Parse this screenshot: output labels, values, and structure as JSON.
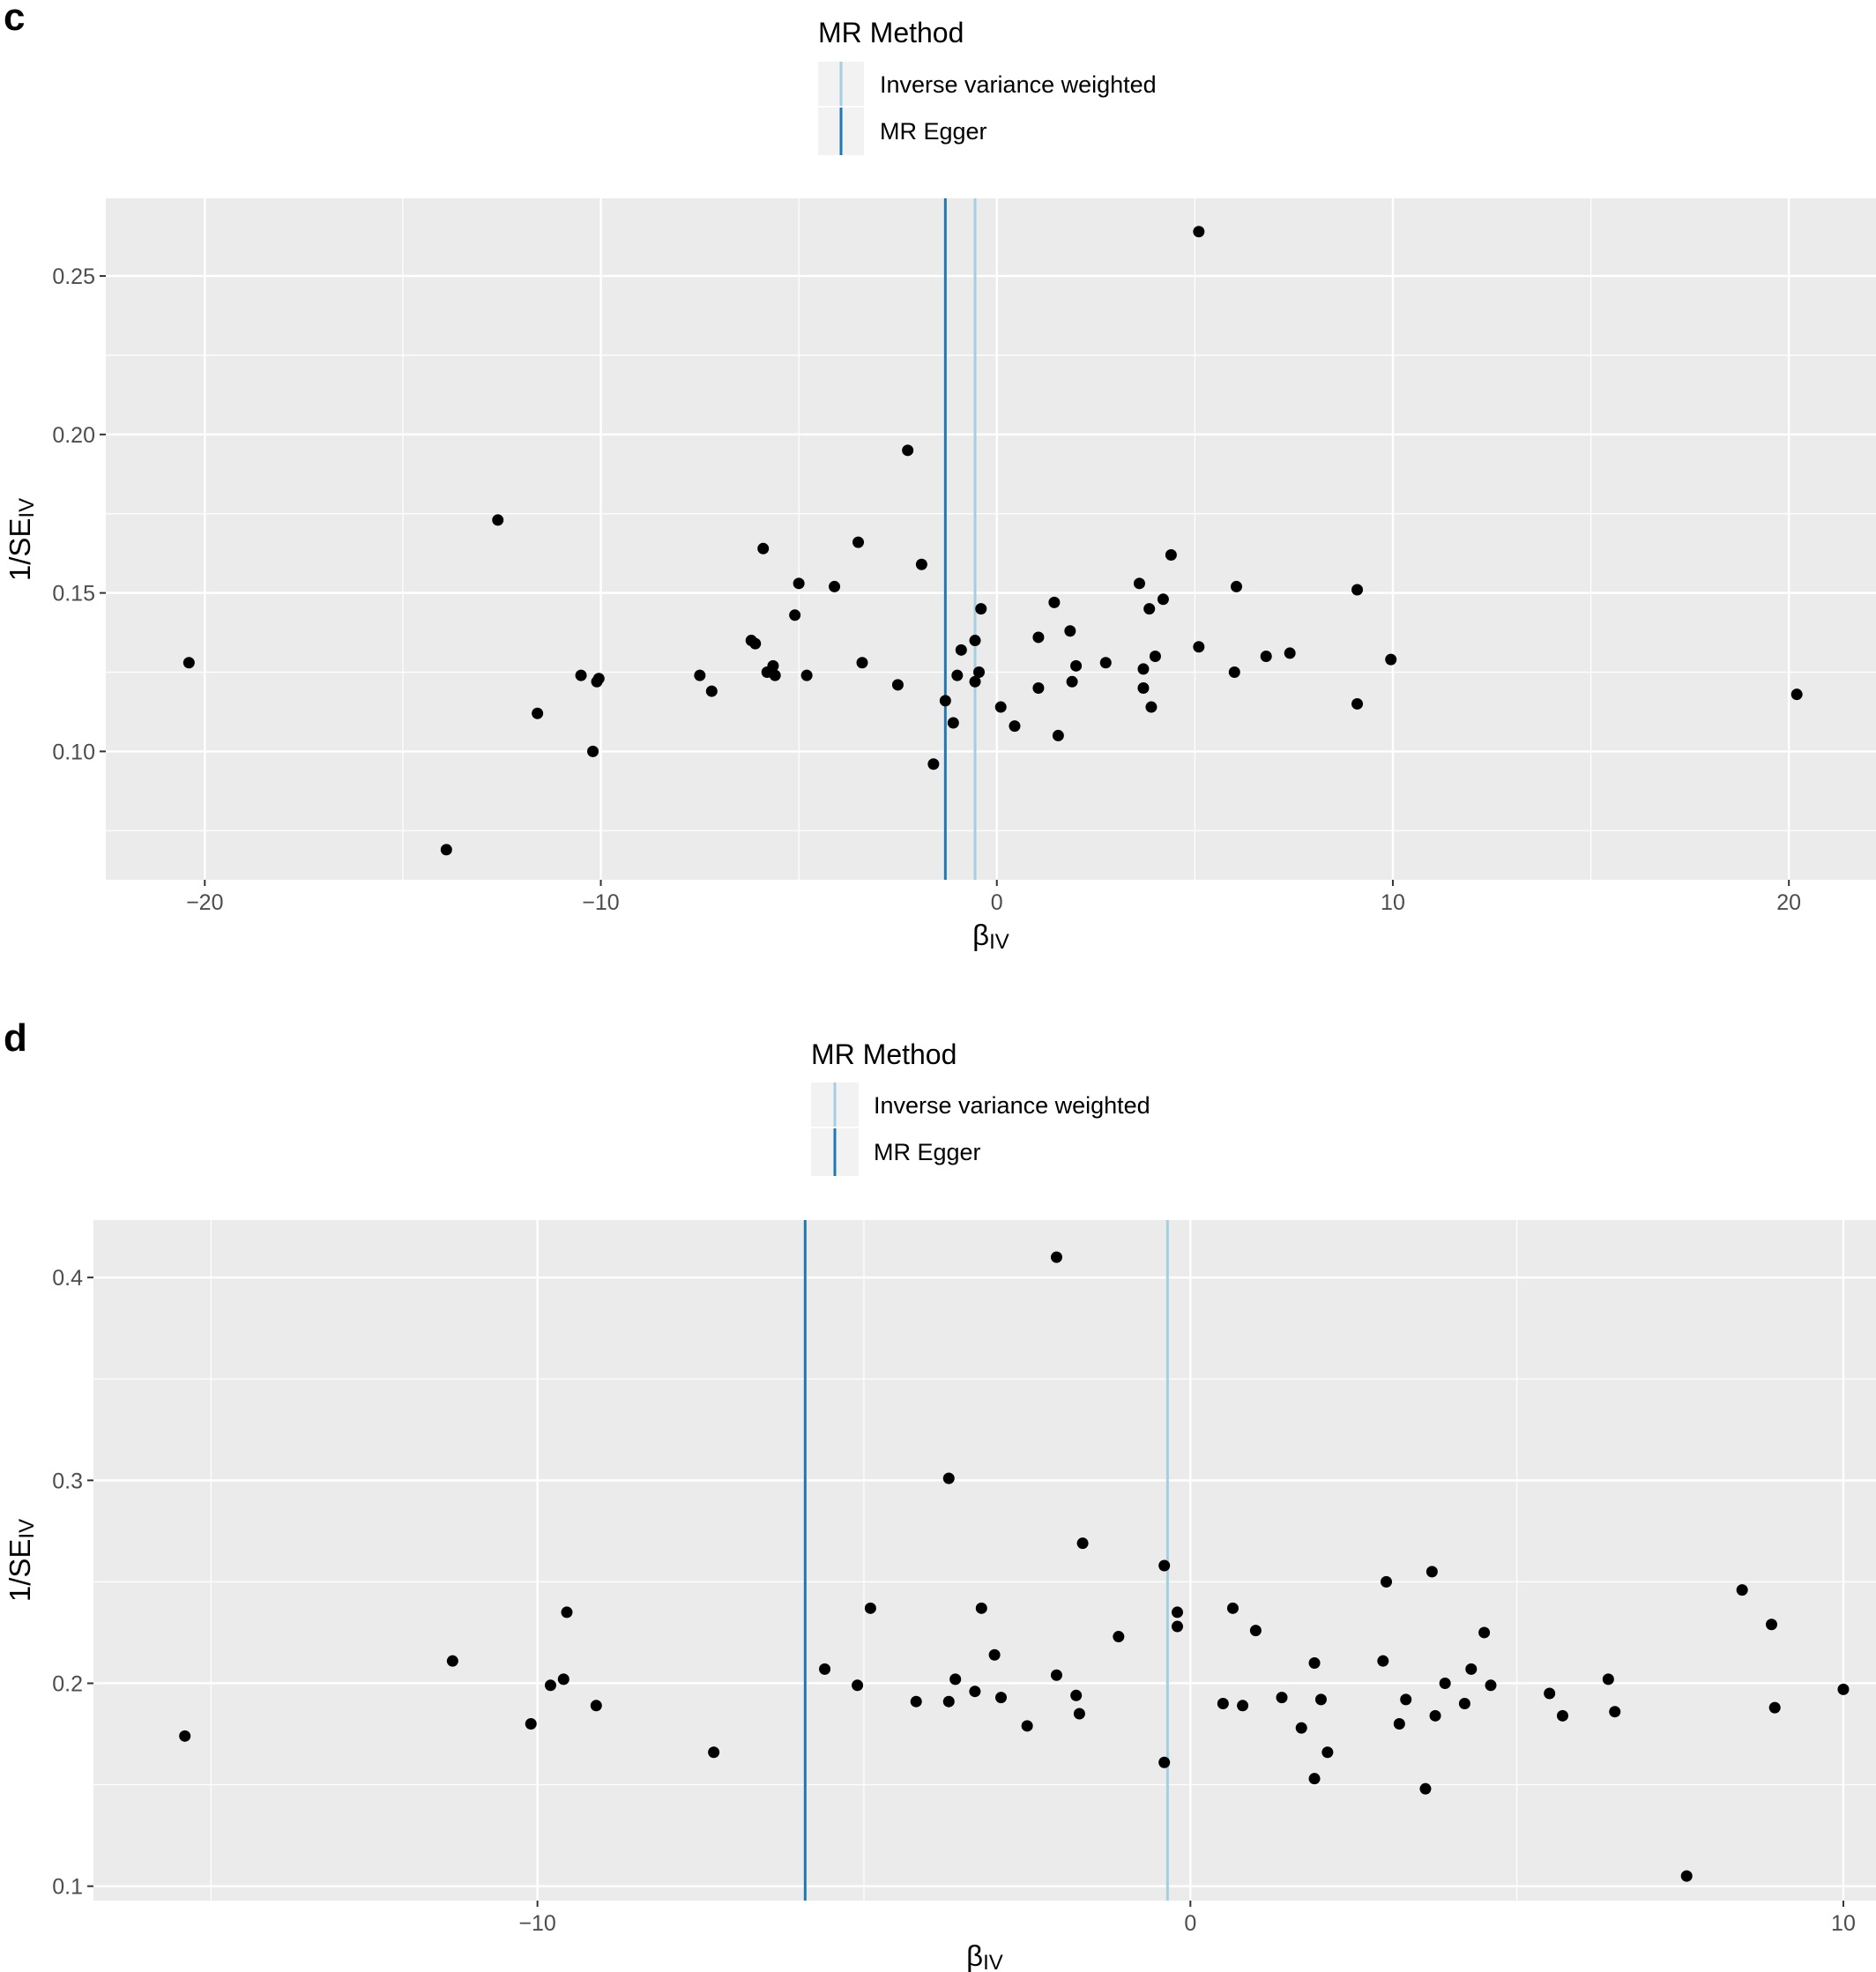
{
  "colors": {
    "panel_bg": "#ebebeb",
    "grid": "#ffffff",
    "ivw": "#a6cee3",
    "egger": "#1f78b4",
    "point": "#000000",
    "legend_key_bg": "#f2f2f2"
  },
  "chart_data": [
    {
      "panel": "c",
      "type": "scatter",
      "legend_title": "MR Method",
      "legend_placement": "top",
      "xlabel": "β",
      "xlabel_sub": "IV",
      "ylabel": "1/SE",
      "ylabel_sub": "IV",
      "xlim": [
        -22.5,
        22.2
      ],
      "ylim": [
        0.0595,
        0.2745
      ],
      "x_ticks": [
        -20,
        -10,
        0,
        10,
        20
      ],
      "x_tick_labels": [
        "−20",
        "−10",
        "0",
        "10",
        "20"
      ],
      "x_minor": [
        -15,
        -5,
        5,
        15
      ],
      "y_ticks": [
        0.1,
        0.15,
        0.2,
        0.25
      ],
      "y_tick_labels": [
        "0.10",
        "0.15",
        "0.20",
        "0.25"
      ],
      "y_minor": [
        0.075,
        0.125,
        0.175,
        0.225
      ],
      "grid": true,
      "lines": [
        {
          "name": "Inverse variance weighted",
          "x": -0.55
        },
        {
          "name": "MR Egger",
          "x": -1.3
        }
      ],
      "points": [
        [
          -20.4,
          0.128
        ],
        [
          -13.9,
          0.069
        ],
        [
          -12.6,
          0.173
        ],
        [
          -11.6,
          0.112
        ],
        [
          -10.5,
          0.124
        ],
        [
          -10.2,
          0.1
        ],
        [
          -10.1,
          0.122
        ],
        [
          -10.05,
          0.123
        ],
        [
          -7.5,
          0.124
        ],
        [
          -7.2,
          0.119
        ],
        [
          -6.2,
          0.135
        ],
        [
          -6.1,
          0.134
        ],
        [
          -5.9,
          0.164
        ],
        [
          -5.8,
          0.125
        ],
        [
          -5.65,
          0.127
        ],
        [
          -5.6,
          0.124
        ],
        [
          -5.1,
          0.143
        ],
        [
          -5.0,
          0.153
        ],
        [
          -4.8,
          0.124
        ],
        [
          -4.1,
          0.152
        ],
        [
          -3.5,
          0.166
        ],
        [
          -3.4,
          0.128
        ],
        [
          -2.5,
          0.121
        ],
        [
          -2.25,
          0.195
        ],
        [
          -1.9,
          0.159
        ],
        [
          -1.6,
          0.096
        ],
        [
          -1.3,
          0.116
        ],
        [
          -1.1,
          0.109
        ],
        [
          -1.0,
          0.124
        ],
        [
          -0.9,
          0.132
        ],
        [
          -0.55,
          0.135
        ],
        [
          -0.55,
          0.122
        ],
        [
          -0.45,
          0.125
        ],
        [
          -0.4,
          0.145
        ],
        [
          0.1,
          0.114
        ],
        [
          0.45,
          0.108
        ],
        [
          1.05,
          0.136
        ],
        [
          1.05,
          0.12
        ],
        [
          1.45,
          0.147
        ],
        [
          1.55,
          0.105
        ],
        [
          1.85,
          0.138
        ],
        [
          1.9,
          0.122
        ],
        [
          2.0,
          0.127
        ],
        [
          2.75,
          0.128
        ],
        [
          3.6,
          0.153
        ],
        [
          3.7,
          0.126
        ],
        [
          3.7,
          0.12
        ],
        [
          3.85,
          0.145
        ],
        [
          3.9,
          0.114
        ],
        [
          4.0,
          0.13
        ],
        [
          4.2,
          0.148
        ],
        [
          4.4,
          0.162
        ],
        [
          5.1,
          0.264
        ],
        [
          5.1,
          0.133
        ],
        [
          6.0,
          0.125
        ],
        [
          6.05,
          0.152
        ],
        [
          6.8,
          0.13
        ],
        [
          7.4,
          0.131
        ],
        [
          9.1,
          0.151
        ],
        [
          9.1,
          0.115
        ],
        [
          9.95,
          0.129
        ],
        [
          20.2,
          0.118
        ]
      ]
    },
    {
      "panel": "d",
      "type": "scatter",
      "legend_title": "MR Method",
      "legend_placement": "top",
      "xlabel": "β",
      "xlabel_sub": "IV",
      "ylabel": "1/SE",
      "ylabel_sub": "IV",
      "xlim": [
        -16.8,
        10.5
      ],
      "ylim": [
        0.0929,
        0.4283
      ],
      "x_ticks": [
        -10,
        0,
        10
      ],
      "x_tick_labels": [
        "−10",
        "0",
        "10"
      ],
      "x_minor": [
        -15,
        -5,
        5
      ],
      "y_ticks": [
        0.1,
        0.2,
        0.3,
        0.4
      ],
      "y_tick_labels": [
        "0.1",
        "0.2",
        "0.3",
        "0.4"
      ],
      "y_minor": [
        0.15,
        0.25,
        0.35
      ],
      "grid": true,
      "lines": [
        {
          "name": "Inverse variance weighted",
          "x": -0.35
        },
        {
          "name": "MR Egger",
          "x": -5.9
        }
      ],
      "points": [
        [
          -15.4,
          0.174
        ],
        [
          -11.3,
          0.211
        ],
        [
          -10.1,
          0.18
        ],
        [
          -9.8,
          0.199
        ],
        [
          -9.6,
          0.202
        ],
        [
          -9.55,
          0.235
        ],
        [
          -9.1,
          0.189
        ],
        [
          -7.3,
          0.166
        ],
        [
          -5.6,
          0.207
        ],
        [
          -5.1,
          0.199
        ],
        [
          -4.9,
          0.237
        ],
        [
          -4.2,
          0.191
        ],
        [
          -3.7,
          0.191
        ],
        [
          -3.7,
          0.301
        ],
        [
          -3.6,
          0.202
        ],
        [
          -3.3,
          0.196
        ],
        [
          -3.2,
          0.237
        ],
        [
          -3.0,
          0.214
        ],
        [
          -2.9,
          0.193
        ],
        [
          -2.5,
          0.179
        ],
        [
          -2.05,
          0.41
        ],
        [
          -2.05,
          0.204
        ],
        [
          -1.75,
          0.194
        ],
        [
          -1.7,
          0.185
        ],
        [
          -1.65,
          0.269
        ],
        [
          -1.1,
          0.223
        ],
        [
          -0.4,
          0.258
        ],
        [
          -0.4,
          0.161
        ],
        [
          -0.2,
          0.235
        ],
        [
          -0.2,
          0.228
        ],
        [
          0.5,
          0.19
        ],
        [
          0.65,
          0.237
        ],
        [
          0.8,
          0.189
        ],
        [
          1.0,
          0.226
        ],
        [
          1.4,
          0.193
        ],
        [
          1.7,
          0.178
        ],
        [
          1.9,
          0.21
        ],
        [
          1.9,
          0.153
        ],
        [
          2.0,
          0.192
        ],
        [
          2.1,
          0.166
        ],
        [
          2.95,
          0.211
        ],
        [
          3.0,
          0.25
        ],
        [
          3.2,
          0.18
        ],
        [
          3.3,
          0.192
        ],
        [
          3.6,
          0.148
        ],
        [
          3.7,
          0.255
        ],
        [
          3.75,
          0.184
        ],
        [
          3.9,
          0.2
        ],
        [
          4.2,
          0.19
        ],
        [
          4.3,
          0.207
        ],
        [
          4.5,
          0.225
        ],
        [
          4.6,
          0.199
        ],
        [
          5.5,
          0.195
        ],
        [
          5.7,
          0.184
        ],
        [
          6.4,
          0.202
        ],
        [
          6.5,
          0.186
        ],
        [
          7.6,
          0.105
        ],
        [
          8.45,
          0.246
        ],
        [
          8.9,
          0.229
        ],
        [
          8.95,
          0.188
        ],
        [
          10.0,
          0.197
        ]
      ]
    }
  ]
}
